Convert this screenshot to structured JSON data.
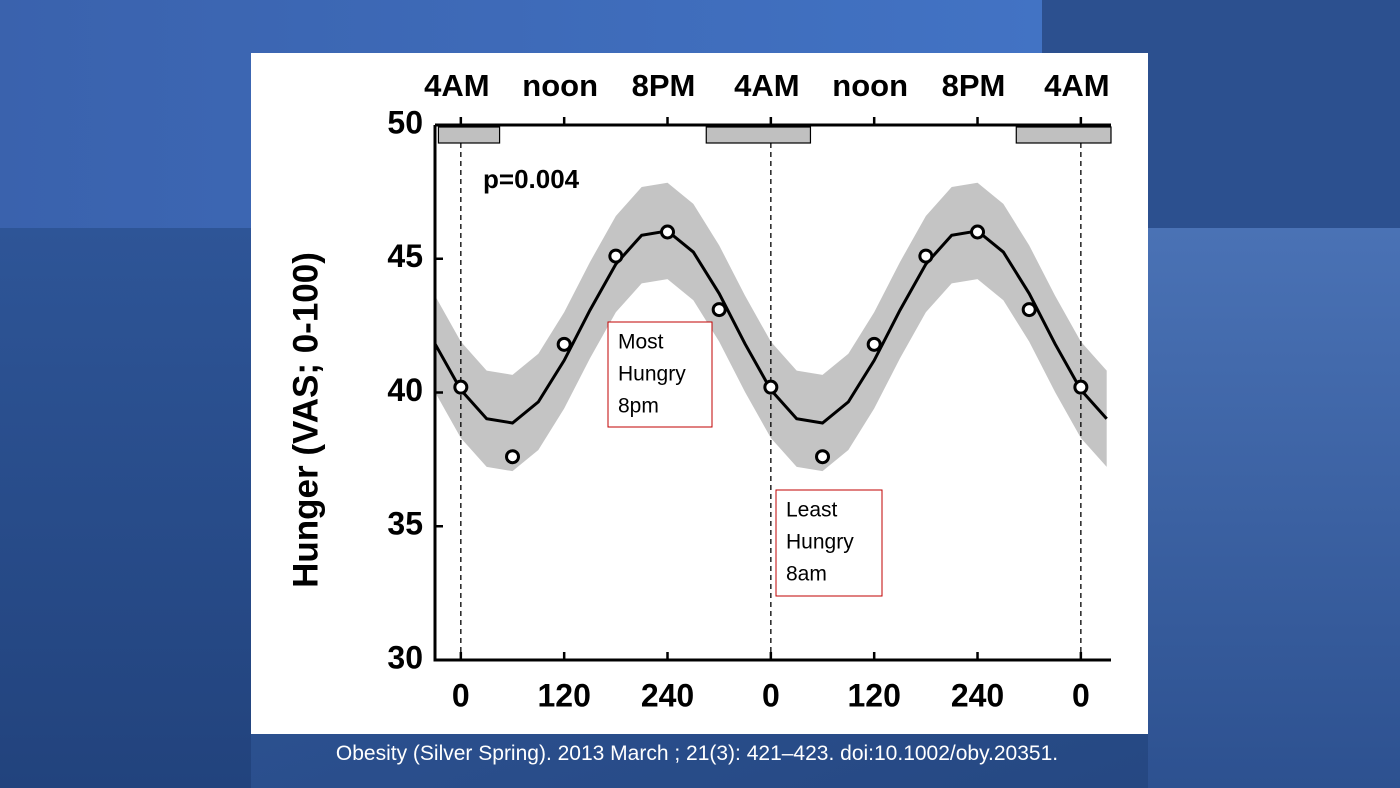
{
  "chart_data": {
    "type": "line",
    "ylabel": "Hunger (VAS; 0-100)",
    "annotation": "p=0.004",
    "notes": [
      {
        "lines": [
          "Most",
          "Hungry",
          "8pm"
        ]
      },
      {
        "lines": [
          "Least",
          "Hungry",
          "8am"
        ]
      }
    ],
    "caption": "Obesity (Silver Spring). 2013 March ; 21(3): 421–423. doi:10.1002/oby.20351.",
    "xlim": [
      -30,
      755
    ],
    "ylim": [
      30,
      50
    ],
    "yticks": [
      30,
      35,
      40,
      45,
      50
    ],
    "xticks": [
      0,
      120,
      240,
      {
        "value": 360,
        "label": "0"
      },
      {
        "value": 480,
        "label": "120"
      },
      {
        "value": 600,
        "label": "240"
      },
      {
        "value": 720,
        "label": "0"
      }
    ],
    "x2ticks": [
      {
        "value": 0,
        "label": "4AM"
      },
      {
        "value": 120,
        "label": "noon"
      },
      {
        "value": 240,
        "label": "8PM"
      },
      {
        "value": 360,
        "label": "4AM"
      },
      {
        "value": 480,
        "label": "noon"
      },
      {
        "value": 600,
        "label": "8PM"
      },
      {
        "value": 720,
        "label": "4AM"
      }
    ],
    "points": {
      "color": "#000000",
      "x": [
        0,
        60,
        120,
        180,
        240,
        300,
        360,
        420,
        480,
        540,
        600,
        660,
        720
      ],
      "values": [
        40.2,
        37.6,
        41.8,
        45.1,
        46.0,
        43.1,
        40.2,
        37.6,
        41.8,
        45.1,
        46.0,
        43.1,
        40.2
      ]
    },
    "fit": {
      "color": "#000000",
      "x": [
        -30,
        0,
        30,
        60,
        90,
        120,
        150,
        180,
        210,
        240,
        270,
        300,
        330,
        360,
        390,
        420,
        450,
        480,
        510,
        540,
        570,
        600,
        630,
        660,
        690,
        720,
        750
      ],
      "values": [
        41.82,
        40.1,
        39.02,
        38.86,
        39.65,
        41.2,
        43.08,
        44.8,
        45.88,
        46.04,
        45.25,
        43.7,
        41.82,
        40.1,
        39.02,
        38.86,
        39.65,
        41.2,
        43.08,
        44.8,
        45.88,
        46.04,
        45.25,
        43.7,
        41.82,
        40.1,
        39.02
      ]
    },
    "band": {
      "color": "#c4c4c4",
      "upper": [
        43.62,
        41.9,
        40.82,
        40.66,
        41.45,
        43.0,
        44.88,
        46.6,
        47.68,
        47.84,
        47.05,
        45.5,
        43.62,
        41.9,
        40.82,
        40.66,
        41.45,
        43.0,
        44.88,
        46.6,
        47.68,
        47.84,
        47.05,
        45.5,
        43.62,
        41.9,
        40.82
      ],
      "lower": [
        40.02,
        38.3,
        37.22,
        37.06,
        37.85,
        39.4,
        41.28,
        43.0,
        44.08,
        44.24,
        43.45,
        41.9,
        40.02,
        38.3,
        37.22,
        37.06,
        37.85,
        39.4,
        41.28,
        43.0,
        44.08,
        44.24,
        43.45,
        41.9,
        40.02,
        38.3,
        37.22
      ]
    },
    "night_bars": [
      [
        -26,
        45
      ],
      [
        285,
        406
      ],
      [
        645,
        755
      ]
    ],
    "vlines": [
      0,
      360,
      720
    ]
  }
}
